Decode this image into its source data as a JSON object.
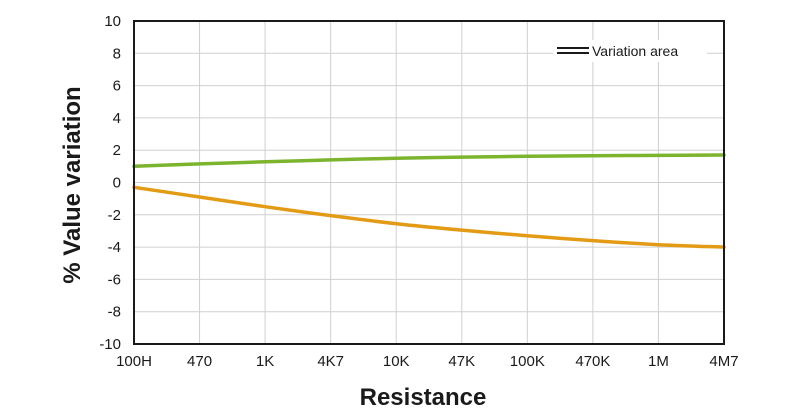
{
  "chart_data": {
    "type": "line",
    "title": "",
    "xlabel": "Resistance",
    "ylabel": "% Value variation",
    "categories": [
      "100H",
      "470",
      "1K",
      "4K7",
      "10K",
      "47K",
      "100K",
      "470K",
      "1M",
      "4M7"
    ],
    "ylim": [
      -10,
      10
    ],
    "yticks": [
      "10",
      "8",
      "6",
      "4",
      "2",
      "0",
      "-2",
      "-4",
      "-6",
      "-8",
      "-10"
    ],
    "ytick_values": [
      10,
      8,
      6,
      4,
      2,
      0,
      -2,
      -4,
      -6,
      -8,
      -10
    ],
    "grid": true,
    "legend_position": "top-right",
    "legend_label": "Variation area",
    "series": [
      {
        "color": "#7cb42d",
        "values": [
          1.0,
          1.15,
          1.28,
          1.4,
          1.5,
          1.57,
          1.62,
          1.66,
          1.68,
          1.7
        ]
      },
      {
        "color": "#e39b16",
        "values": [
          -0.3,
          -0.9,
          -1.5,
          -2.05,
          -2.55,
          -2.95,
          -3.3,
          -3.6,
          -3.85,
          -4.0
        ]
      }
    ]
  }
}
